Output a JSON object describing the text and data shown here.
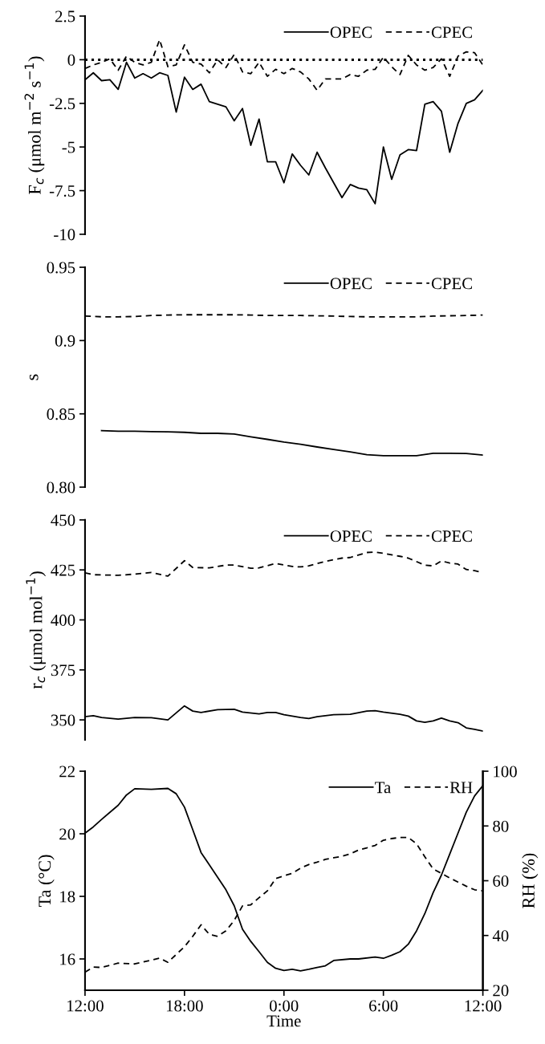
{
  "chart_data": [
    {
      "type": "line",
      "ylabel": "F$_{c}$ (μmol m$^{−2}$ s$^{−1}$)",
      "xlim": [
        "2000-01-01T12:00",
        "2000-01-02T12:00"
      ],
      "ylim": [
        -10,
        2.5
      ],
      "yticks": [
        {
          "value": 2.5,
          "label": "2.5"
        },
        0,
        {
          "value": -2.5,
          "label": "-2.5"
        },
        {
          "value": -5,
          "label": "-5"
        },
        {
          "value": -7.5,
          "label": "-7.5"
        },
        {
          "value": -10,
          "label": "-10"
        }
      ],
      "tick_labels": "y",
      "legend": "top right",
      "grid": false,
      "x": [
        "2000-01-01T12:00",
        "2000-01-01T12:30",
        "2000-01-01T13:00",
        "2000-01-01T13:30",
        "2000-01-01T14:00",
        "2000-01-01T14:30",
        "2000-01-01T15:00",
        "2000-01-01T15:30",
        "2000-01-01T16:00",
        "2000-01-01T16:30",
        "2000-01-01T17:00",
        "2000-01-01T17:30",
        "2000-01-01T18:00",
        "2000-01-01T18:30",
        "2000-01-01T19:00",
        "2000-01-01T19:30",
        "2000-01-01T20:00",
        "2000-01-01T20:30",
        "2000-01-01T21:00",
        "2000-01-01T21:30",
        "2000-01-01T22:00",
        "2000-01-01T22:30",
        "2000-01-01T23:00",
        "2000-01-01T23:30",
        "2000-01-02T00:00",
        "2000-01-02T00:30",
        "2000-01-02T01:00",
        "2000-01-02T01:30",
        "2000-01-02T02:00",
        "2000-01-02T02:30",
        "2000-01-02T03:00",
        "2000-01-02T03:30",
        "2000-01-02T04:00",
        "2000-01-02T04:30",
        "2000-01-02T05:00",
        "2000-01-02T05:30",
        "2000-01-02T06:00",
        "2000-01-02T06:30",
        "2000-01-02T07:00",
        "2000-01-02T07:30",
        "2000-01-02T08:00",
        "2000-01-02T08:30",
        "2000-01-02T09:00",
        "2000-01-02T09:30",
        "2000-01-02T10:00",
        "2000-01-02T10:30",
        "2000-01-02T11:00",
        "2000-01-02T11:30",
        "2000-01-02T12:00"
      ],
      "ref_lines": [
        {
          "axis": "y",
          "value": 0,
          "color": "#000000",
          "line_style": "dotted"
        }
      ],
      "series": [
        {
          "name": "OPEC",
          "color": "#000000",
          "line_style": "solid",
          "values": [
            -1.15,
            -0.75,
            -1.2,
            -1.15,
            -1.7,
            -0.15,
            -1.05,
            -0.8,
            -1.05,
            -0.75,
            -0.9,
            -3.0,
            -1.0,
            -1.7,
            -1.4,
            -2.4,
            -2.55,
            -2.7,
            -3.5,
            -2.8,
            -4.9,
            -3.4,
            -5.85,
            -5.85,
            -7.05,
            -5.4,
            -6.05,
            -6.6,
            -5.3,
            -6.2,
            -7.05,
            -7.9,
            -7.15,
            -7.35,
            -7.45,
            -8.25,
            -5.0,
            -6.85,
            -5.45,
            -5.15,
            -5.2,
            -2.55,
            -2.4,
            -2.95,
            -5.3,
            -3.65,
            -2.5,
            -2.3,
            -1.75
          ]
        },
        {
          "name": "CPEC",
          "color": "#000000",
          "line_style": "dashed",
          "values": [
            -0.5,
            -0.3,
            -0.15,
            0.05,
            -0.6,
            0.2,
            -0.15,
            -0.3,
            -0.15,
            1.15,
            -0.4,
            -0.3,
            0.85,
            -0.15,
            -0.25,
            -0.75,
            0.0,
            -0.45,
            0.3,
            -0.7,
            -0.8,
            -0.15,
            -0.95,
            -0.55,
            -0.8,
            -0.5,
            -0.7,
            -1.1,
            -1.75,
            -1.1,
            -1.1,
            -1.1,
            -0.85,
            -0.95,
            -0.6,
            -0.55,
            0.15,
            -0.4,
            -0.85,
            0.25,
            -0.3,
            -0.6,
            -0.45,
            0.05,
            -0.95,
            0.2,
            0.45,
            0.4,
            -0.3
          ]
        }
      ]
    },
    {
      "type": "line",
      "ylabel": "s",
      "xlim": [
        "2000-01-01T12:00",
        "2000-01-02T12:00"
      ],
      "ylim": [
        0.8,
        0.95
      ],
      "yticks": [
        {
          "value": 0.8,
          "label": "0.80"
        },
        0.85,
        0.9,
        0.95
      ],
      "tick_labels": "y",
      "legend": "top right",
      "grid": false,
      "series": [
        {
          "name": "OPEC",
          "color": "#000000",
          "line_style": "solid",
          "x": [
            "2000-01-01T13:00",
            "2000-01-01T14:00",
            "2000-01-01T15:00",
            "2000-01-01T16:00",
            "2000-01-01T17:00",
            "2000-01-01T18:00",
            "2000-01-01T19:00",
            "2000-01-01T20:00",
            "2000-01-01T21:00",
            "2000-01-01T22:00",
            "2000-01-01T23:00",
            "2000-01-02T00:00",
            "2000-01-02T01:00",
            "2000-01-02T02:00",
            "2000-01-02T03:00",
            "2000-01-02T04:00",
            "2000-01-02T05:00",
            "2000-01-02T06:00",
            "2000-01-02T07:00",
            "2000-01-02T08:00",
            "2000-01-02T09:00",
            "2000-01-02T10:00",
            "2000-01-02T11:00",
            "2000-01-02T12:00"
          ],
          "values": [
            0.8386,
            0.8381,
            0.8381,
            0.8379,
            0.8377,
            0.8374,
            0.8367,
            0.8367,
            0.8362,
            0.8343,
            0.8326,
            0.8307,
            0.8293,
            0.8274,
            0.8257,
            0.824,
            0.8221,
            0.8214,
            0.8214,
            0.8214,
            0.8231,
            0.8231,
            0.8229,
            0.8219
          ]
        },
        {
          "name": "CPEC",
          "color": "#000000",
          "line_style": "dashed",
          "x": [
            "2000-01-01T12:00",
            "2000-01-01T13:00",
            "2000-01-01T14:00",
            "2000-01-01T15:00",
            "2000-01-01T16:00",
            "2000-01-01T17:00",
            "2000-01-01T18:00",
            "2000-01-01T19:00",
            "2000-01-01T20:00",
            "2000-01-01T21:00",
            "2000-01-01T22:00",
            "2000-01-01T23:00",
            "2000-01-02T00:00",
            "2000-01-02T01:00",
            "2000-01-02T02:00",
            "2000-01-02T03:00",
            "2000-01-02T04:00",
            "2000-01-02T05:00",
            "2000-01-02T06:00",
            "2000-01-02T07:00",
            "2000-01-02T08:00",
            "2000-01-02T09:00",
            "2000-01-02T10:00",
            "2000-01-02T11:00",
            "2000-01-02T12:00"
          ],
          "values": [
            0.9167,
            0.9162,
            0.9162,
            0.9164,
            0.9171,
            0.9174,
            0.9176,
            0.9176,
            0.9176,
            0.9176,
            0.9174,
            0.9171,
            0.9171,
            0.9171,
            0.9169,
            0.9167,
            0.9164,
            0.9162,
            0.9162,
            0.9162,
            0.9162,
            0.9167,
            0.9169,
            0.9171,
            0.9174
          ]
        }
      ]
    },
    {
      "type": "line",
      "ylabel": "r$_{c}$ (μmol mol$^{−1}$)",
      "xlim": [
        "2000-01-01T12:00",
        "2000-01-02T12:00"
      ],
      "ylim": [
        340,
        450
      ],
      "yticks": [
        350,
        375,
        400,
        425,
        450
      ],
      "tick_labels": "y",
      "legend": "top right",
      "grid": false,
      "series": [
        {
          "name": "OPEC",
          "color": "#000000",
          "line_style": "solid",
          "x": [
            "2000-01-01T12:00",
            "2000-01-01T12:30",
            "2000-01-01T13:00",
            "2000-01-01T14:00",
            "2000-01-01T15:00",
            "2000-01-01T16:00",
            "2000-01-01T17:00",
            "2000-01-01T18:00",
            "2000-01-01T18:30",
            "2000-01-01T19:00",
            "2000-01-01T20:00",
            "2000-01-01T21:00",
            "2000-01-01T21:30",
            "2000-01-01T22:30",
            "2000-01-01T23:00",
            "2000-01-01T23:30",
            "2000-01-02T00:00",
            "2000-01-02T01:00",
            "2000-01-02T01:30",
            "2000-01-02T02:00",
            "2000-01-02T03:00",
            "2000-01-02T04:00",
            "2000-01-02T05:00",
            "2000-01-02T05:30",
            "2000-01-02T06:00",
            "2000-01-02T07:00",
            "2000-01-02T07:30",
            "2000-01-02T08:00",
            "2000-01-02T08:30",
            "2000-01-02T09:00",
            "2000-01-02T09:30",
            "2000-01-02T10:00",
            "2000-01-02T10:30",
            "2000-01-02T11:00",
            "2000-01-02T11:30",
            "2000-01-02T12:00"
          ],
          "values": [
            351.6,
            352.1,
            351.2,
            350.4,
            351.2,
            351.1,
            350.0,
            357.0,
            354.4,
            353.7,
            355.1,
            355.3,
            353.9,
            353.0,
            353.7,
            353.7,
            352.6,
            351.2,
            350.7,
            351.6,
            352.6,
            352.8,
            354.4,
            354.6,
            353.9,
            352.8,
            351.9,
            349.5,
            348.8,
            349.5,
            350.9,
            349.5,
            348.6,
            346.0,
            345.3,
            344.4
          ]
        },
        {
          "name": "CPEC",
          "color": "#000000",
          "line_style": "dashed",
          "x": [
            "2000-01-01T12:00",
            "2000-01-01T12:30",
            "2000-01-01T14:00",
            "2000-01-01T15:00",
            "2000-01-01T16:00",
            "2000-01-01T17:00",
            "2000-01-01T18:00",
            "2000-01-01T18:30",
            "2000-01-01T19:30",
            "2000-01-01T20:30",
            "2000-01-01T21:00",
            "2000-01-01T22:00",
            "2000-01-01T22:30",
            "2000-01-01T23:30",
            "2000-01-02T00:30",
            "2000-01-02T01:00",
            "2000-01-02T01:30",
            "2000-01-02T02:30",
            "2000-01-02T03:30",
            "2000-01-02T04:00",
            "2000-01-02T05:00",
            "2000-01-02T05:30",
            "2000-01-02T06:00",
            "2000-01-02T07:00",
            "2000-01-02T07:30",
            "2000-01-02T08:30",
            "2000-01-02T09:00",
            "2000-01-02T09:30",
            "2000-01-02T10:00",
            "2000-01-02T10:30",
            "2000-01-02T11:00",
            "2000-01-02T11:30",
            "2000-01-02T12:00"
          ],
          "values": [
            423.5,
            422.6,
            422.3,
            422.9,
            423.7,
            421.9,
            429.6,
            426.2,
            426.0,
            427.4,
            427.4,
            425.8,
            426.0,
            428.2,
            426.7,
            426.5,
            427.0,
            429.3,
            430.9,
            431.2,
            433.7,
            433.9,
            433.3,
            431.8,
            430.9,
            427.4,
            427.0,
            429.5,
            428.4,
            427.9,
            425.2,
            424.6,
            423.7
          ]
        }
      ]
    },
    {
      "type": "line",
      "xlabel": "Time",
      "ylabel": "Ta (°C)",
      "y2label": "RH (%)",
      "xlim": [
        "2000-01-01T12:00",
        "2000-01-02T12:00"
      ],
      "xticks": [
        {
          "value": "2000-01-01T12:00",
          "label": "12:00"
        },
        {
          "value": "2000-01-01T18:00",
          "label": "18:00"
        },
        {
          "value": "2000-01-02T00:00",
          "label": "0:00"
        },
        {
          "value": "2000-01-02T06:00",
          "label": "6:00"
        },
        {
          "value": "2000-01-02T12:00",
          "label": "12:00"
        }
      ],
      "ylim": [
        15,
        22
      ],
      "yticks": [
        16,
        18,
        20,
        22
      ],
      "y2lim": [
        20,
        100
      ],
      "y2ticks": [
        20,
        40,
        60,
        80,
        100
      ],
      "legend": "top right",
      "grid": false,
      "series": [
        {
          "name": "Ta",
          "color": "#000000",
          "line_style": "solid",
          "x": [
            "2000-01-01T12:00",
            "2000-01-01T12:30",
            "2000-01-01T13:00",
            "2000-01-01T14:00",
            "2000-01-01T14:30",
            "2000-01-01T15:00",
            "2000-01-01T16:00",
            "2000-01-01T17:00",
            "2000-01-01T17:30",
            "2000-01-01T18:00",
            "2000-01-01T18:30",
            "2000-01-01T19:00",
            "2000-01-01T19:30",
            "2000-01-01T20:30",
            "2000-01-01T21:00",
            "2000-01-01T21:30",
            "2000-01-01T22:00",
            "2000-01-01T22:30",
            "2000-01-01T23:00",
            "2000-01-01T23:30",
            "2000-01-02T00:00",
            "2000-01-02T00:30",
            "2000-01-02T01:00",
            "2000-01-02T01:30",
            "2000-01-02T02:00",
            "2000-01-02T02:30",
            "2000-01-02T03:00",
            "2000-01-02T04:00",
            "2000-01-02T04:30",
            "2000-01-02T05:30",
            "2000-01-02T06:00",
            "2000-01-02T06:30",
            "2000-01-02T07:00",
            "2000-01-02T07:30",
            "2000-01-02T08:00",
            "2000-01-02T08:30",
            "2000-01-02T09:00",
            "2000-01-02T09:30",
            "2000-01-02T10:00",
            "2000-01-02T10:30",
            "2000-01-02T11:00",
            "2000-01-02T11:30",
            "2000-01-02T12:00"
          ],
          "values": [
            20.02,
            20.22,
            20.46,
            20.91,
            21.24,
            21.44,
            21.42,
            21.45,
            21.28,
            20.85,
            20.13,
            19.4,
            19.01,
            18.21,
            17.7,
            16.95,
            16.56,
            16.23,
            15.89,
            15.7,
            15.63,
            15.67,
            15.62,
            15.67,
            15.73,
            15.78,
            15.95,
            16.0,
            16.0,
            16.06,
            16.02,
            16.12,
            16.23,
            16.47,
            16.9,
            17.45,
            18.12,
            18.68,
            19.35,
            20.02,
            20.69,
            21.21,
            21.54
          ]
        },
        {
          "name": "RH",
          "color": "#000000",
          "line_style": "dashed",
          "axis": "y2",
          "x": [
            "2000-01-01T12:00",
            "2000-01-01T12:30",
            "2000-01-01T13:00",
            "2000-01-01T14:00",
            "2000-01-01T15:00",
            "2000-01-01T16:00",
            "2000-01-01T16:30",
            "2000-01-01T17:00",
            "2000-01-01T18:00",
            "2000-01-01T18:30",
            "2000-01-01T19:00",
            "2000-01-01T19:30",
            "2000-01-01T20:00",
            "2000-01-01T20:30",
            "2000-01-01T21:00",
            "2000-01-01T21:30",
            "2000-01-01T22:00",
            "2000-01-01T22:30",
            "2000-01-01T23:00",
            "2000-01-01T23:30",
            "2000-01-02T00:00",
            "2000-01-02T00:30",
            "2000-01-02T01:00",
            "2000-01-02T01:30",
            "2000-01-02T02:00",
            "2000-01-02T02:30",
            "2000-01-02T03:00",
            "2000-01-02T03:30",
            "2000-01-02T04:00",
            "2000-01-02T04:30",
            "2000-01-02T05:00",
            "2000-01-02T05:30",
            "2000-01-02T06:00",
            "2000-01-02T06:30",
            "2000-01-02T07:00",
            "2000-01-02T07:30",
            "2000-01-02T08:00",
            "2000-01-02T08:30",
            "2000-01-02T09:00",
            "2000-01-02T09:30",
            "2000-01-02T10:00",
            "2000-01-02T10:30",
            "2000-01-02T11:00",
            "2000-01-02T11:30",
            "2000-01-02T12:00"
          ],
          "values": [
            26.6,
            28.5,
            28.3,
            29.9,
            29.6,
            31.0,
            31.7,
            30.2,
            35.9,
            39.7,
            43.9,
            40.4,
            39.7,
            41.7,
            45.5,
            50.8,
            51.2,
            53.8,
            56.3,
            60.8,
            61.8,
            62.7,
            64.6,
            65.9,
            66.8,
            67.8,
            68.4,
            68.9,
            69.8,
            71.2,
            72.0,
            72.9,
            74.8,
            75.4,
            75.8,
            75.8,
            73.5,
            68.7,
            64.3,
            62.7,
            61.0,
            59.5,
            58.0,
            56.7,
            56.3
          ]
        }
      ]
    }
  ]
}
